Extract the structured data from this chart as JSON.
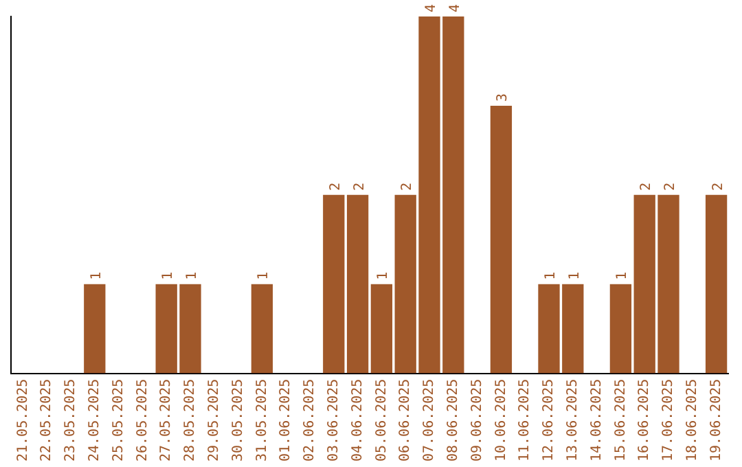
{
  "chart_data": {
    "type": "bar",
    "categories": [
      "21.05.2025",
      "22.05.2025",
      "23.05.2025",
      "24.05.2025",
      "25.05.2025",
      "26.05.2025",
      "27.05.2025",
      "28.05.2025",
      "29.05.2025",
      "30.05.2025",
      "31.05.2025",
      "01.06.2025",
      "02.06.2025",
      "03.06.2025",
      "04.06.2025",
      "05.06.2025",
      "06.06.2025",
      "07.06.2025",
      "08.06.2025",
      "09.06.2025",
      "10.06.2025",
      "11.06.2025",
      "12.06.2025",
      "13.06.2025",
      "14.06.2025",
      "15.06.2025",
      "16.06.2025",
      "17.06.2025",
      "18.06.2025",
      "19.06.2025"
    ],
    "values": [
      0,
      0,
      0,
      1,
      0,
      0,
      1,
      1,
      0,
      0,
      1,
      0,
      0,
      2,
      2,
      1,
      2,
      4,
      4,
      0,
      3,
      0,
      1,
      1,
      0,
      1,
      2,
      2,
      0,
      2
    ],
    "value_labels": [
      null,
      null,
      null,
      "1",
      null,
      null,
      "1",
      "1",
      null,
      null,
      "1",
      null,
      null,
      "2",
      "2",
      "1",
      "2",
      "4",
      "4",
      null,
      "3",
      null,
      "1",
      "1",
      null,
      "1",
      "2",
      "2",
      null,
      "2"
    ],
    "color": "#a0582a",
    "tick_labels": "x",
    "grid": false,
    "legend": false
  }
}
